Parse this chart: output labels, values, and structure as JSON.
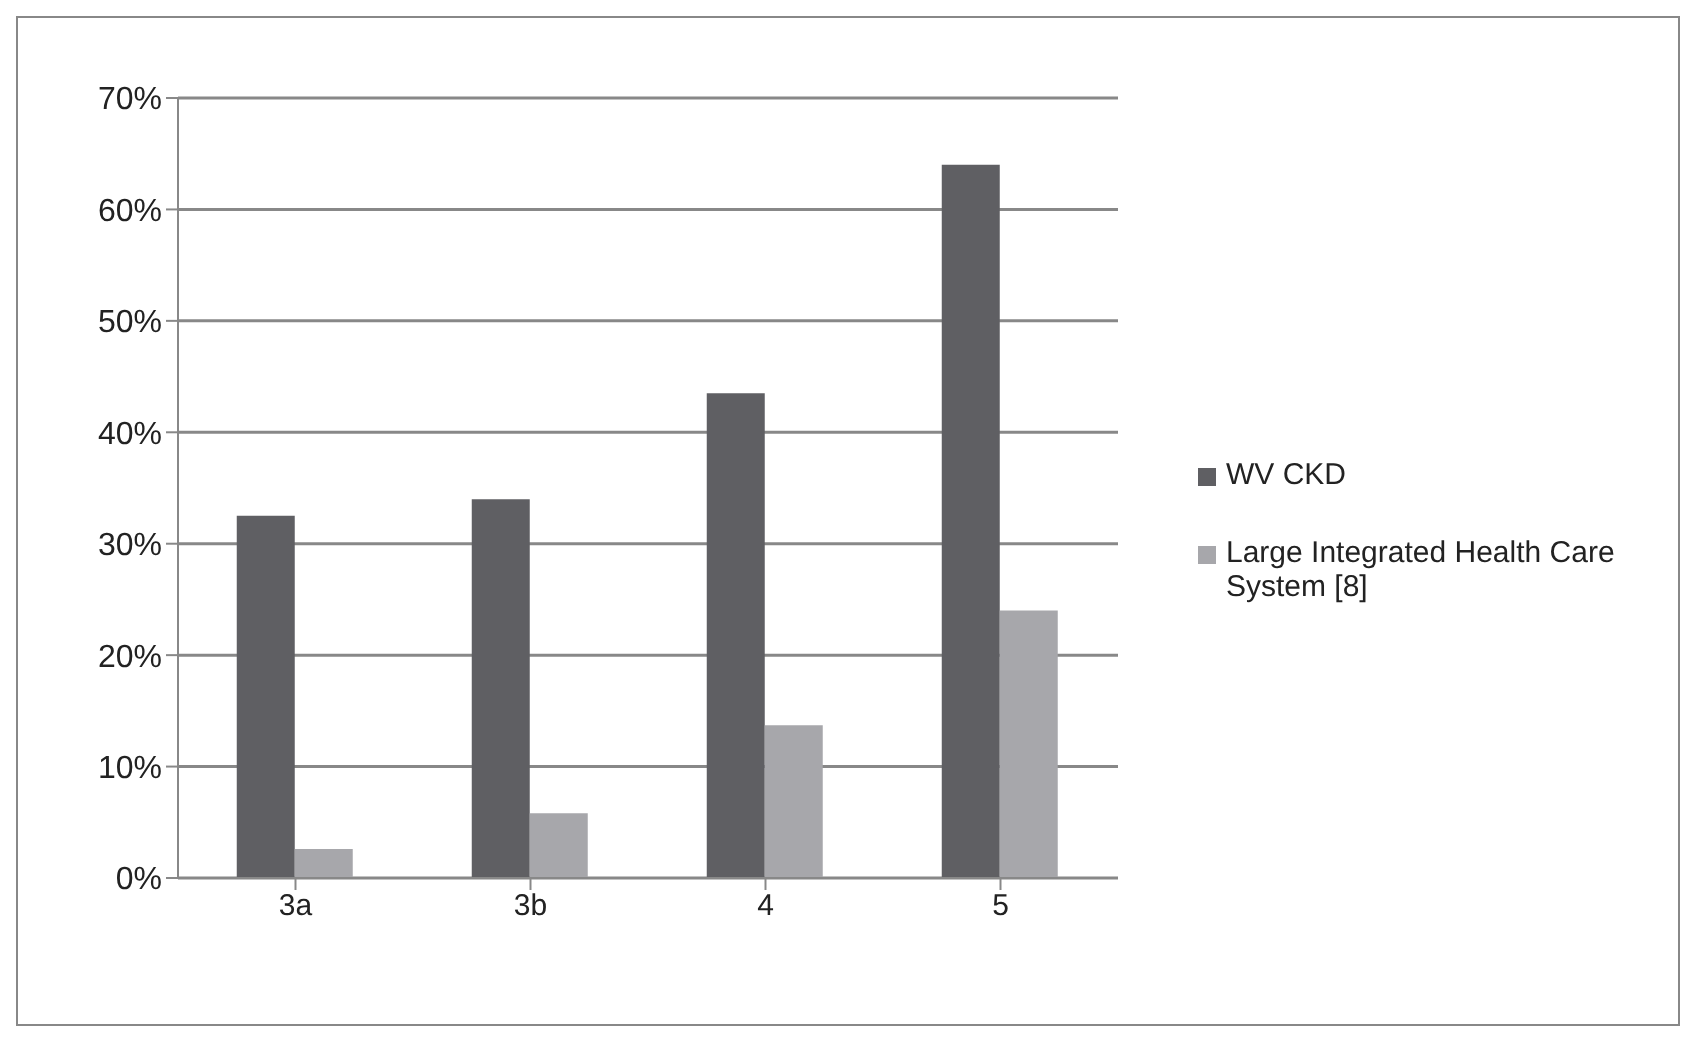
{
  "chart_data": {
    "type": "bar",
    "categories": [
      "3a",
      "3b",
      "4",
      "5"
    ],
    "series": [
      {
        "name": "WV CKD",
        "color": "#5f5f63",
        "values": [
          32.5,
          34,
          43.5,
          64
        ]
      },
      {
        "name": "Large Integrated Health Care System  [8]",
        "color": "#a7a7ab",
        "values": [
          2.6,
          5.8,
          13.7,
          24
        ]
      }
    ],
    "ylim": [
      0,
      70
    ],
    "yticks": [
      {
        "value": 0,
        "label": "0%"
      },
      {
        "value": 10,
        "label": "10%"
      },
      {
        "value": 20,
        "label": "20%"
      },
      {
        "value": 30,
        "label": "30%"
      },
      {
        "value": 40,
        "label": "40%"
      },
      {
        "value": 50,
        "label": "50%"
      },
      {
        "value": 60,
        "label": "60%"
      },
      {
        "value": 70,
        "label": "70%"
      }
    ],
    "grid": "y",
    "legend": "right"
  }
}
